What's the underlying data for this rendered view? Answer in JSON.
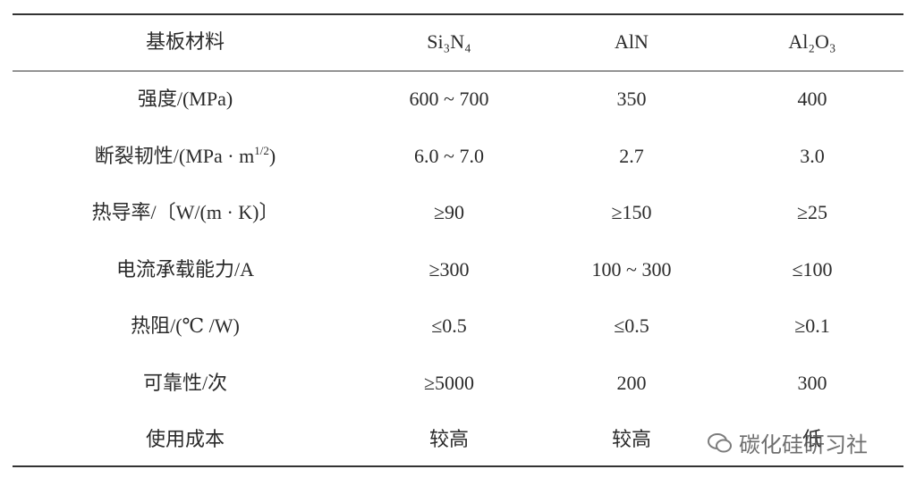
{
  "table": {
    "header": [
      "基板材料",
      "Si₃N₄",
      "AlN",
      "Al₂O₃"
    ],
    "rows": [
      [
        "强度/(MPa)",
        "600 ~ 700",
        "350",
        "400"
      ],
      [
        [
          "断裂韧性/(MPa · m",
          "1/2",
          ")"
        ],
        "6.0 ~ 7.0",
        "2.7",
        "3.0"
      ],
      [
        "热导率/〔W/(m · K)〕",
        "≥90",
        "≥150",
        "≥25"
      ],
      [
        "电流承载能力/A",
        "≥300",
        "100 ~ 300",
        "≤100"
      ],
      [
        "热阻/(℃ /W)",
        "≤0.5",
        "≤0.5",
        "≥0.1"
      ],
      [
        "可靠性/次",
        "≥5000",
        "200",
        "300"
      ],
      [
        "使用成本",
        "较高",
        "较高",
        "低"
      ]
    ]
  },
  "watermark": "碳化硅研习社"
}
